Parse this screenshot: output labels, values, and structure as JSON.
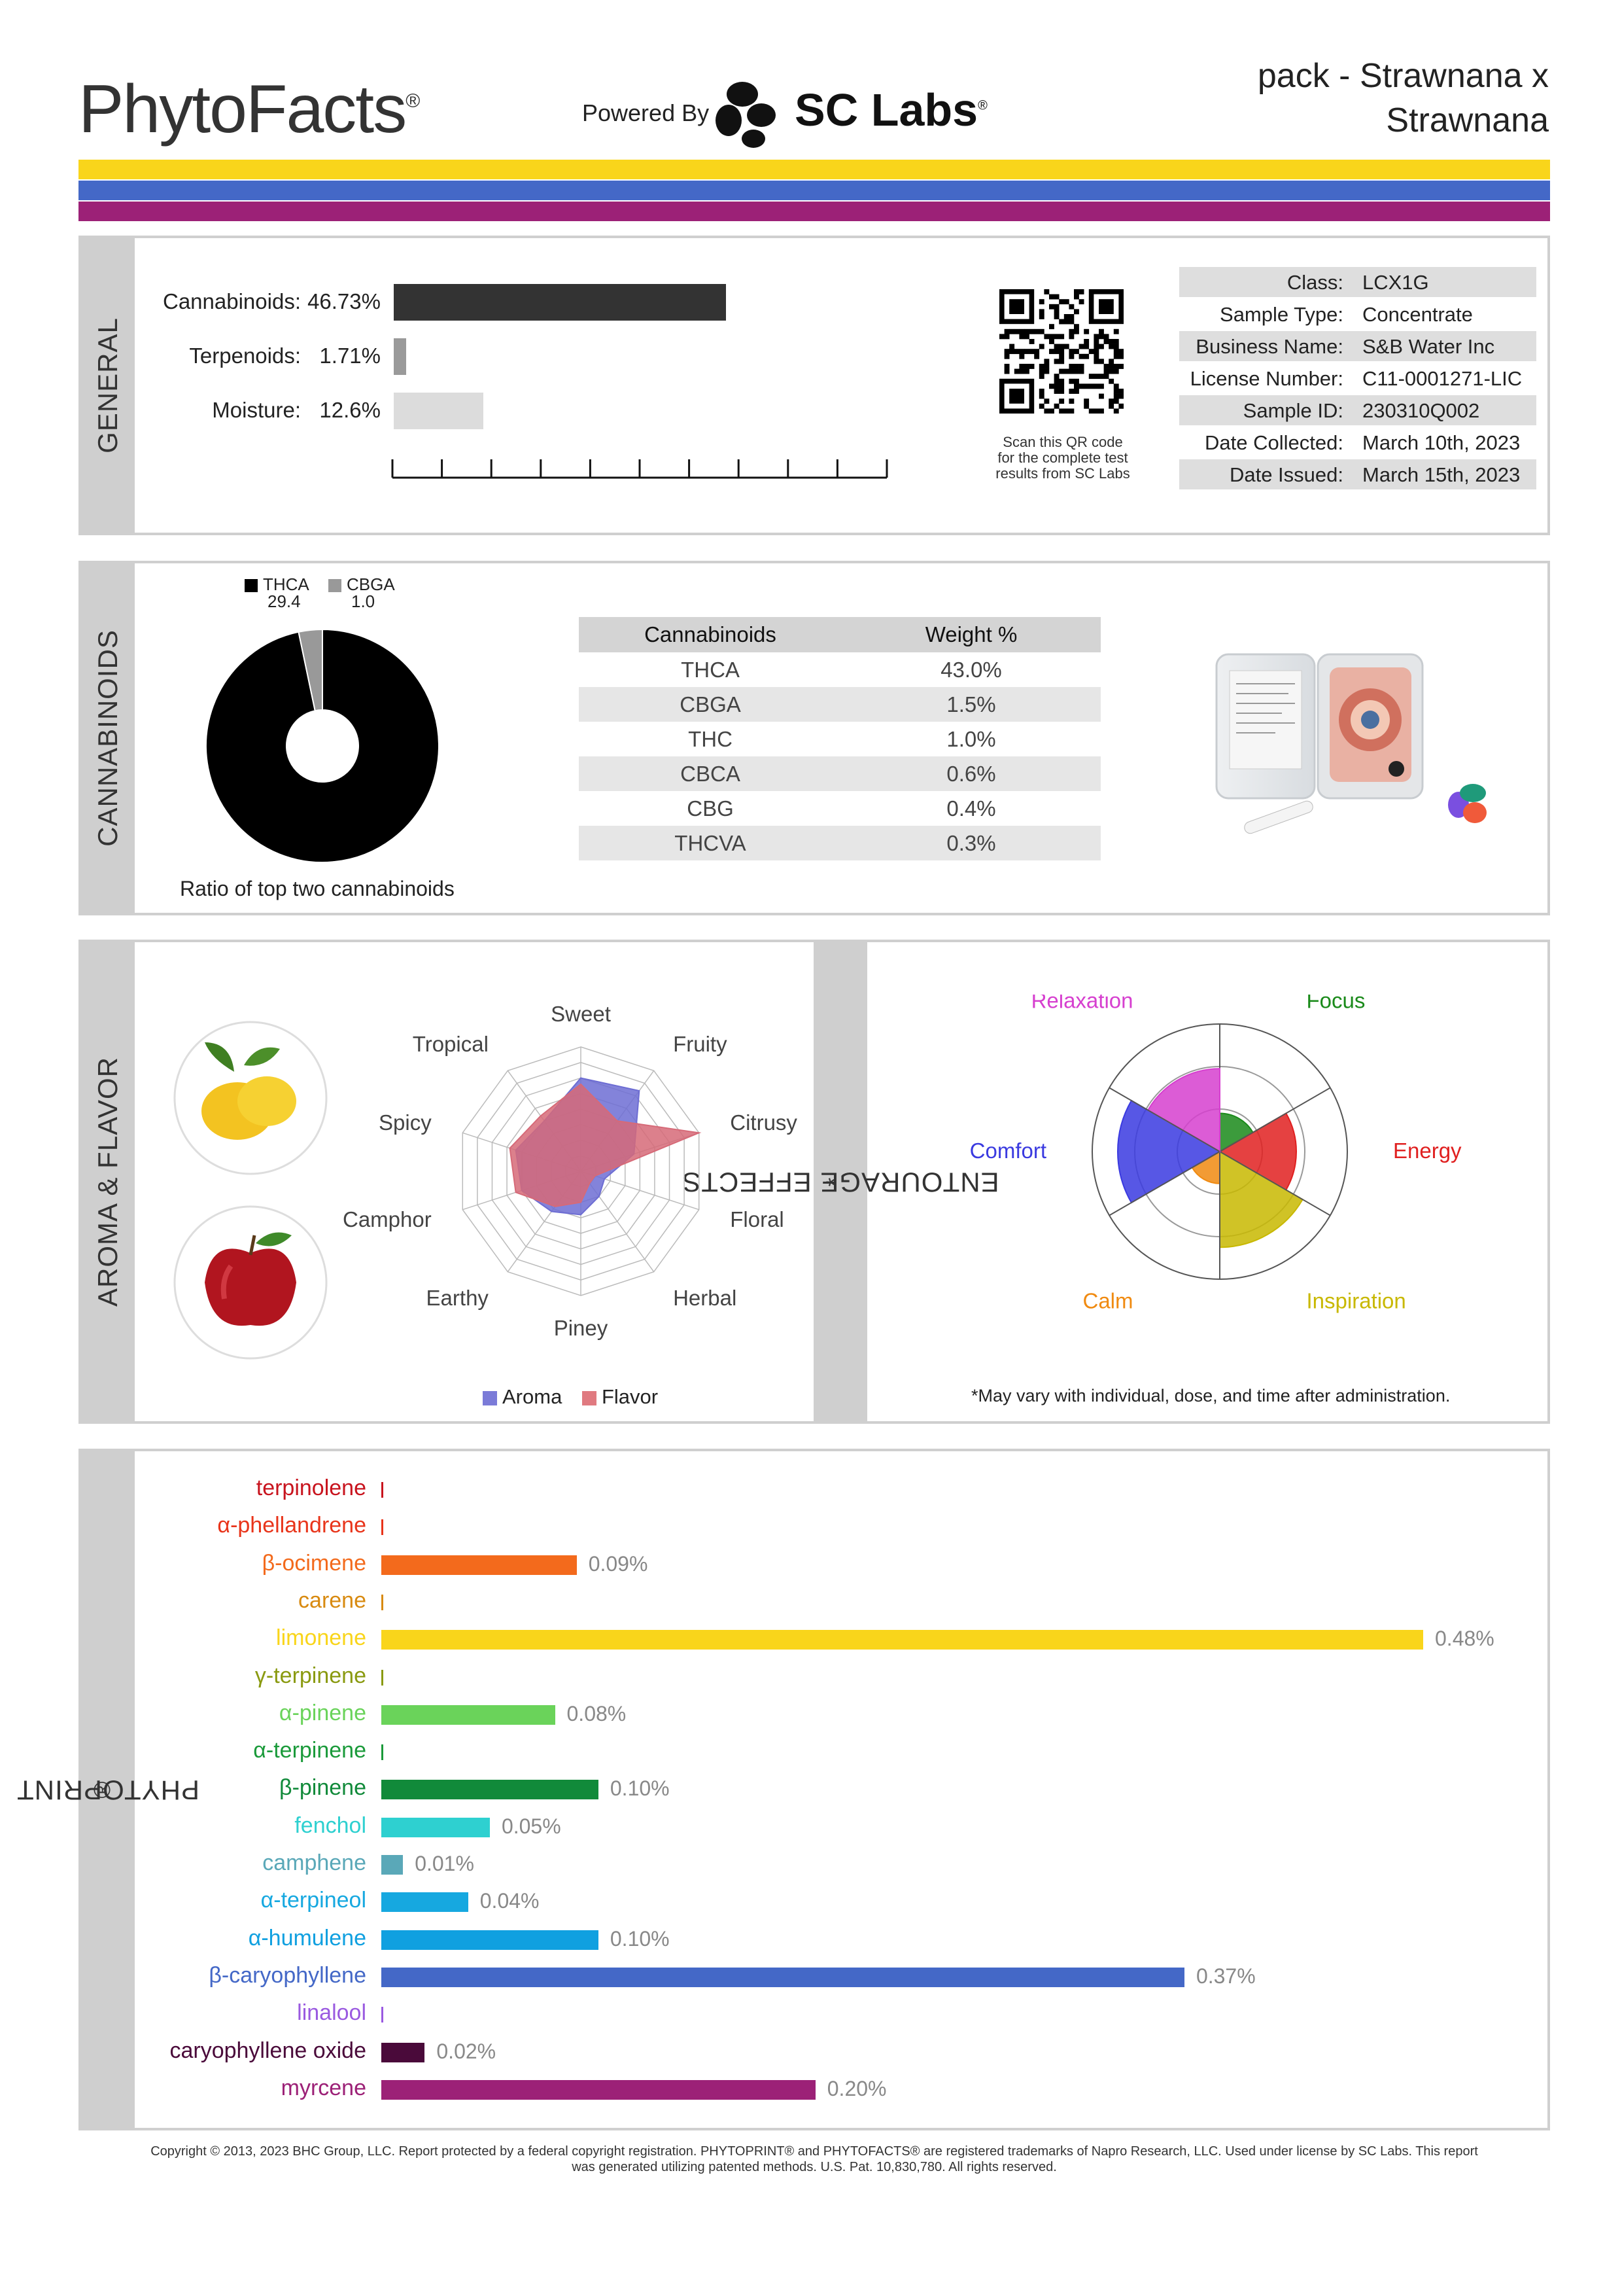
{
  "header": {
    "brand": "PhytoFacts",
    "brand_mark": "®",
    "powered_by": "Powered By",
    "lab_name": "SC Labs",
    "lab_mark": "®",
    "product_line1": "pack - Strawnana x",
    "product_line2": "Strawnana"
  },
  "colors": {
    "stripe1": "#f9d51b",
    "stripe2": "#4468c7",
    "stripe3": "#9c2177"
  },
  "general": {
    "section_label": "GENERAL",
    "bars": [
      {
        "label": "Cannabinoids:",
        "value": "46.73%",
        "percent": 46.73,
        "color": "#333333"
      },
      {
        "label": "Terpenoids:",
        "value": "1.71%",
        "percent": 1.71,
        "color": "#9a9a9a"
      },
      {
        "label": "Moisture:",
        "value": "12.6%",
        "percent": 12.6,
        "color": "#dcdcdc"
      }
    ],
    "qr_caption": [
      "Scan this QR code",
      "for the complete test",
      "results from SC Labs"
    ],
    "meta": [
      {
        "key": "Class:",
        "value": "LCX1G"
      },
      {
        "key": "Sample Type:",
        "value": "Concentrate"
      },
      {
        "key": "Business Name:",
        "value": "S&B Water Inc"
      },
      {
        "key": "License Number:",
        "value": "C11-0001271-LIC"
      },
      {
        "key": "Sample ID:",
        "value": "230310Q002"
      },
      {
        "key": "Date Collected:",
        "value": "March 10th, 2023"
      },
      {
        "key": "Date Issued:",
        "value": "March 15th, 2023"
      }
    ]
  },
  "cannabinoids": {
    "section_label": "CANNABINOIDS",
    "donut_legend": [
      {
        "name": "THCA",
        "value": "29.4",
        "color": "#000000"
      },
      {
        "name": "CBGA",
        "value": "1.0",
        "color": "#999999"
      }
    ],
    "donut_caption": "Ratio of top two cannabinoids",
    "table_headers": [
      "Cannabinoids",
      "Weight %"
    ],
    "table_rows": [
      [
        "THCA",
        "43.0%"
      ],
      [
        "CBGA",
        "1.5%"
      ],
      [
        "THC",
        "1.0%"
      ],
      [
        "CBCA",
        "0.6%"
      ],
      [
        "CBG",
        "0.4%"
      ],
      [
        "THCVA",
        "0.3%"
      ]
    ]
  },
  "aroma": {
    "section_label": "AROMA & FLAVOR",
    "labels": [
      "Sweet",
      "Fruity",
      "Citrusy",
      "Floral",
      "Herbal",
      "Piney",
      "Earthy",
      "Camphor",
      "Spicy",
      "Tropical"
    ],
    "aroma_values": [
      0.75,
      0.8,
      0.45,
      0.2,
      0.25,
      0.35,
      0.4,
      0.5,
      0.55,
      0.5
    ],
    "flavor_values": [
      0.7,
      0.5,
      1.0,
      0.12,
      0.12,
      0.25,
      0.35,
      0.55,
      0.6,
      0.55
    ],
    "legend": [
      {
        "name": "Aroma",
        "color": "#7b7bd8"
      },
      {
        "name": "Flavor",
        "color": "#e07a80"
      }
    ]
  },
  "entourage": {
    "section_label": "ENTOURAGE EFFECTS",
    "section_mark": "*",
    "effects": [
      {
        "name": "Focus",
        "value": 0.3,
        "color": "#1a8a1a"
      },
      {
        "name": "Energy",
        "value": 0.6,
        "color": "#e02020"
      },
      {
        "name": "Inspiration",
        "value": 0.75,
        "color": "#c8b800"
      },
      {
        "name": "Calm",
        "value": 0.25,
        "color": "#f08a10"
      },
      {
        "name": "Comfort",
        "value": 0.8,
        "color": "#3a3ae0"
      },
      {
        "name": "Relaxation",
        "value": 0.65,
        "color": "#d63fcf"
      }
    ],
    "note": "*May vary with individual, dose, and time after administration."
  },
  "phytoprint": {
    "section_label": "PHYTOPRINT",
    "section_mark": "®",
    "terpenes": [
      {
        "name": "terpinolene",
        "value": "",
        "amount": 0.0,
        "color": "#c8141e"
      },
      {
        "name": "α-phellandrene",
        "value": "",
        "amount": 0.0,
        "color": "#e8341a"
      },
      {
        "name": "β-ocimene",
        "value": "0.09%",
        "amount": 0.09,
        "color": "#f36a1c"
      },
      {
        "name": "carene",
        "value": "",
        "amount": 0.0,
        "color": "#d88a10"
      },
      {
        "name": "limonene",
        "value": "0.48%",
        "amount": 0.48,
        "color": "#f9d51b"
      },
      {
        "name": "γ-terpinene",
        "value": "",
        "amount": 0.0,
        "color": "#8a9a10"
      },
      {
        "name": "α-pinene",
        "value": "0.08%",
        "amount": 0.08,
        "color": "#6ad35a"
      },
      {
        "name": "α-terpinene",
        "value": "",
        "amount": 0.0,
        "color": "#1a9a3a"
      },
      {
        "name": "β-pinene",
        "value": "0.10%",
        "amount": 0.1,
        "color": "#118a3a"
      },
      {
        "name": "fenchol",
        "value": "0.05%",
        "amount": 0.05,
        "color": "#2ed0d0"
      },
      {
        "name": "camphene",
        "value": "0.01%",
        "amount": 0.01,
        "color": "#5aa8b8"
      },
      {
        "name": "α-terpineol",
        "value": "0.04%",
        "amount": 0.04,
        "color": "#16a8e0"
      },
      {
        "name": "α-humulene",
        "value": "0.10%",
        "amount": 0.1,
        "color": "#10a0e0"
      },
      {
        "name": "β-caryophyllene",
        "value": "0.37%",
        "amount": 0.37,
        "color": "#4468c7"
      },
      {
        "name": "linalool",
        "value": "",
        "amount": 0.0,
        "color": "#9a5ae0"
      },
      {
        "name": "caryophyllene oxide",
        "value": "0.02%",
        "amount": 0.02,
        "color": "#4a0a3a"
      },
      {
        "name": "myrcene",
        "value": "0.20%",
        "amount": 0.2,
        "color": "#9c2177"
      }
    ]
  },
  "footer": {
    "line1": "Copyright © 2013, 2023 BHC Group, LLC. Report protected by a federal copyright registration. PHYTOPRINT® and PHYTOFACTS® are registered trademarks of Napro Research, LLC. Used under license by SC Labs. This report",
    "line2": "was generated utilizing patented methods. U.S. Pat. 10,830,780. All rights reserved."
  }
}
